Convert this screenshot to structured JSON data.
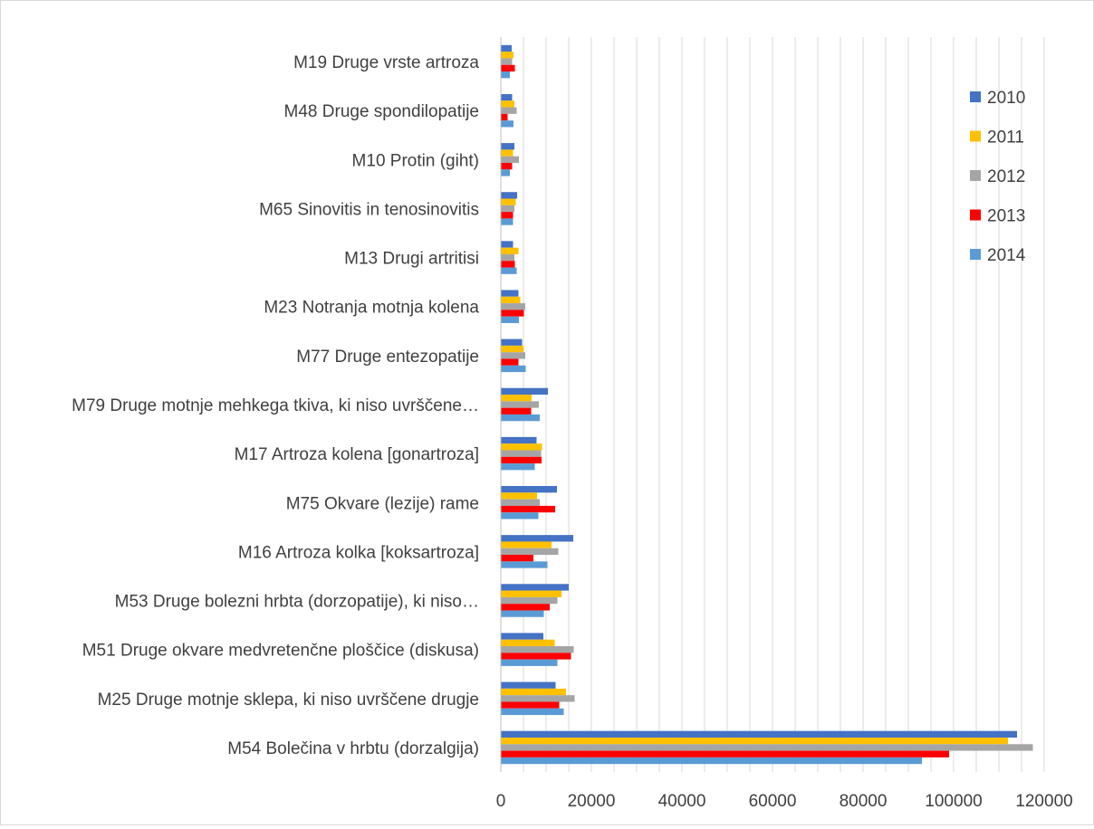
{
  "chart_data": {
    "type": "bar",
    "orientation": "horizontal",
    "title": "",
    "xlabel": "",
    "ylabel": "",
    "xlim": [
      0,
      120000
    ],
    "x_ticks": [
      "0",
      "20000",
      "40000",
      "60000",
      "80000",
      "100000",
      "120000"
    ],
    "x_tick_values": [
      0,
      20000,
      40000,
      60000,
      80000,
      100000,
      120000
    ],
    "grid": "vertical",
    "legend_position": "right",
    "categories": [
      "M19 Druge vrste artroza",
      "M48 Druge spondilopatije",
      "M10 Protin (giht)",
      "M65 Sinovitis in tenosinovitis",
      "M13 Drugi artritisi",
      "M23 Notranja motnja kolena",
      "M77 Druge entezopatije",
      "M79 Druge motnje mehkega tkiva, ki niso uvrščene…",
      "M17 Artroza kolena [gonartroza]",
      "M75 Okvare (lezije) rame",
      "M16 Artroza kolka [koksartroza]",
      "M53 Druge bolezni hrbta (dorzopatije), ki niso…",
      "M51 Druge okvare medvretenčne ploščice (diskusa)",
      "M25 Druge motnje sklepa,  ki niso uvrščene drugje",
      "M54 Bolečina v hrbtu (dorzalgija)"
    ],
    "series": [
      {
        "name": "2010",
        "color": "#4472c4",
        "values": [
          2400,
          2500,
          3000,
          3600,
          2700,
          3900,
          4700,
          10400,
          7900,
          12400,
          16000,
          15000,
          9400,
          12100,
          114000
        ]
      },
      {
        "name": "2011",
        "color": "#ffc000",
        "values": [
          2800,
          3000,
          2700,
          3300,
          3900,
          4300,
          5000,
          6800,
          9100,
          8000,
          11200,
          13400,
          11900,
          14400,
          112000
        ]
      },
      {
        "name": "2012",
        "color": "#a5a5a5",
        "values": [
          2500,
          3500,
          4000,
          3000,
          3000,
          5400,
          5400,
          8400,
          8900,
          8600,
          12700,
          12500,
          16100,
          16300,
          117500
        ]
      },
      {
        "name": "2013",
        "color": "#ff0000",
        "values": [
          3100,
          1500,
          2500,
          2700,
          3100,
          5100,
          3900,
          6700,
          9000,
          12000,
          7200,
          10800,
          15500,
          12900,
          99000
        ]
      },
      {
        "name": "2014",
        "color": "#5b9bd5",
        "values": [
          2000,
          2800,
          2000,
          2700,
          3500,
          4000,
          5500,
          8600,
          7500,
          8300,
          10300,
          9500,
          12500,
          13900,
          93000
        ]
      }
    ]
  }
}
